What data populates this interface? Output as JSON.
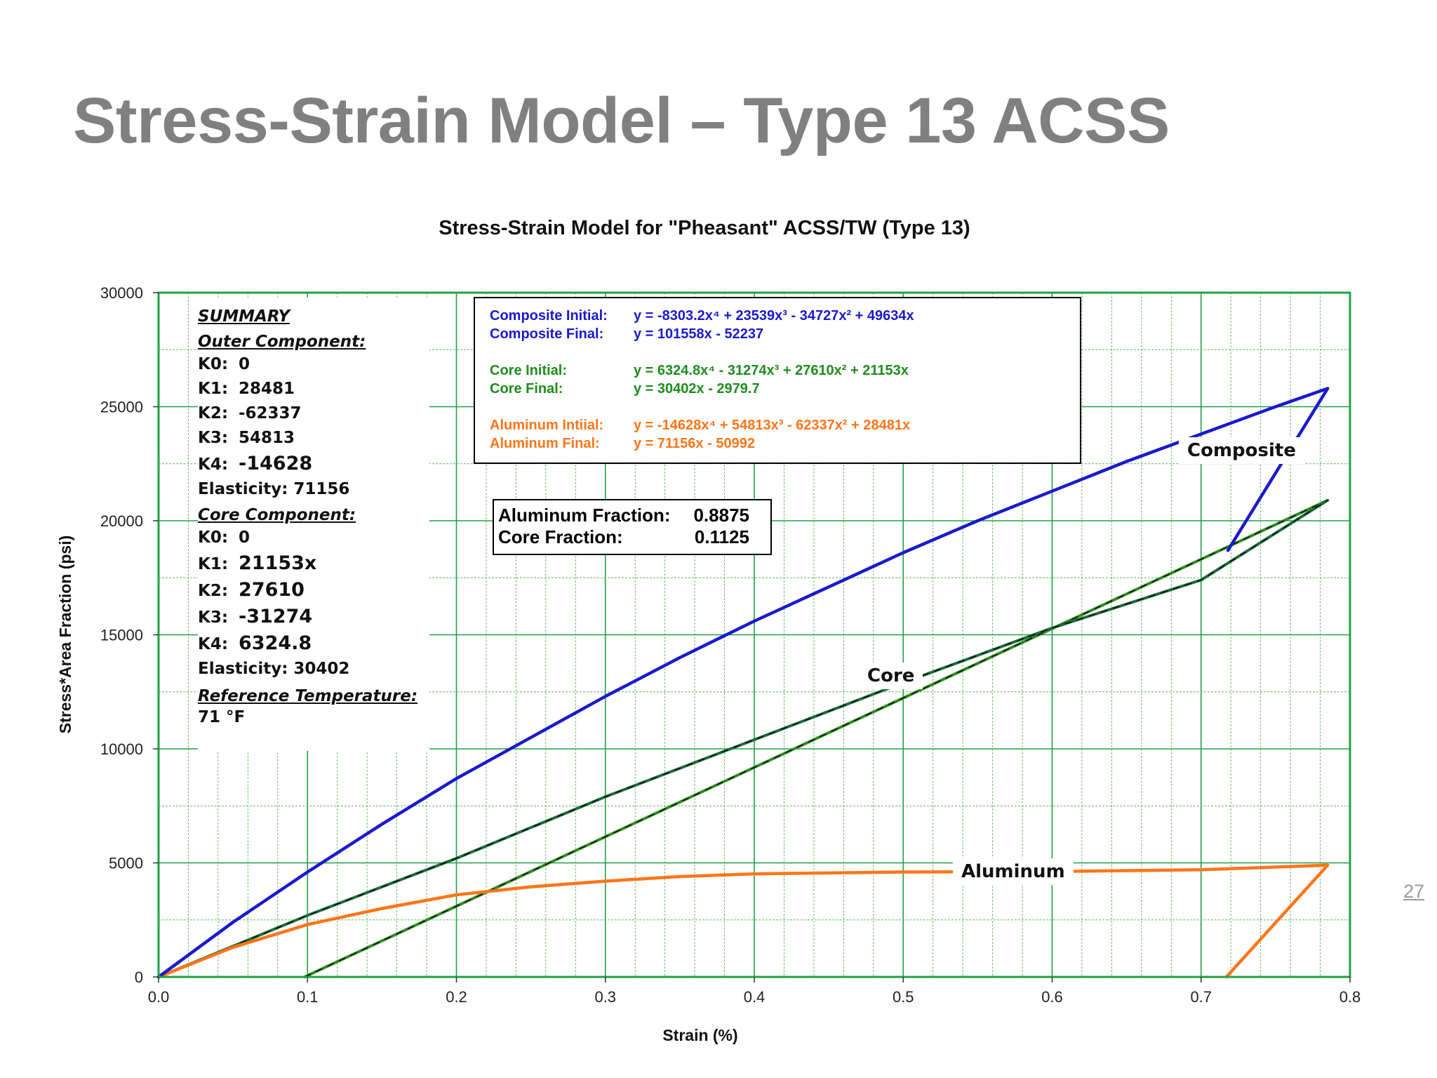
{
  "slide": {
    "title": "Stress-Strain Model – Type 13 ACSS",
    "page_number": "27"
  },
  "chart_data": {
    "type": "line",
    "title": "Stress-Strain Model for \"Pheasant\" ACSS/TW (Type 13)",
    "xlabel": "Strain (%)",
    "ylabel": "Stress*Area Fraction (psi)",
    "xlim": [
      0,
      0.8
    ],
    "ylim": [
      0,
      30000
    ],
    "x_ticks": [
      "0.0",
      "0.1",
      "0.2",
      "0.3",
      "0.4",
      "0.5",
      "0.6",
      "0.7",
      "0.8"
    ],
    "y_ticks": [
      "0",
      "5000",
      "10000",
      "15000",
      "20000",
      "25000",
      "30000"
    ],
    "grid": true,
    "colors": {
      "composite": "#1a1acc",
      "core": "#1e6b3c",
      "core_final": "#2e8b1e",
      "aluminum": "#ff7518",
      "grid_major": "#22a047",
      "grid_minor": "#5cb85c"
    },
    "series": [
      {
        "name": "Composite",
        "x": [
          0,
          0.05,
          0.1,
          0.15,
          0.2,
          0.25,
          0.3,
          0.35,
          0.4,
          0.45,
          0.5,
          0.55,
          0.6,
          0.65,
          0.7,
          0.75,
          0.785,
          0.718
        ],
        "y": [
          0,
          2400,
          4600,
          6700,
          8700,
          10500,
          12300,
          14000,
          15600,
          17100,
          18600,
          20000,
          21300,
          22600,
          23800,
          25000,
          25800,
          18700
        ]
      },
      {
        "name": "Core",
        "x": [
          0,
          0.1,
          0.2,
          0.3,
          0.4,
          0.5,
          0.6,
          0.7,
          0.785
        ],
        "y": [
          0,
          2700,
          5200,
          7900,
          10400,
          12900,
          15300,
          17400,
          20900
        ]
      },
      {
        "name": "Core Final",
        "x": [
          0.098,
          0.785
        ],
        "y": [
          0,
          20900
        ]
      },
      {
        "name": "Aluminum",
        "x": [
          0,
          0.05,
          0.1,
          0.15,
          0.2,
          0.25,
          0.3,
          0.35,
          0.4,
          0.5,
          0.6,
          0.7,
          0.785,
          0.717
        ],
        "y": [
          0,
          1300,
          2300,
          3000,
          3600,
          3950,
          4200,
          4400,
          4520,
          4600,
          4620,
          4700,
          4900,
          0
        ]
      }
    ],
    "summary": {
      "title": "SUMMARY",
      "outer_header": "Outer Component:",
      "outer": [
        {
          "k": "K0:",
          "v": "0"
        },
        {
          "k": "K1:",
          "v": "28481"
        },
        {
          "k": "K2:",
          "v": "-62337"
        },
        {
          "k": "K3:",
          "v": "54813"
        },
        {
          "k": "K4:",
          "v": "-14628"
        }
      ],
      "outer_elasticity": "Elasticity:  71156",
      "core_header": "Core Component:",
      "core": [
        {
          "k": "K0:",
          "v": "0"
        },
        {
          "k": "K1:",
          "v": "21153x"
        },
        {
          "k": "K2:",
          "v": "27610"
        },
        {
          "k": "K3:",
          "v": "-31274"
        },
        {
          "k": "K4:",
          "v": "6324.8"
        }
      ],
      "core_elasticity": "Elasticity:  30402",
      "ref_header": "Reference Temperature:",
      "ref_value": "71 °F"
    },
    "equations": {
      "composite_initial_label": "Composite Initial:",
      "composite_initial": "y = -8303.2x⁴ + 23539x³ - 34727x² + 49634x",
      "composite_final_label": "Composite Final:",
      "composite_final": "y = 101558x - 52237",
      "core_initial_label": "Core Initial:",
      "core_initial": "y = 6324.8x⁴ - 31274x³ + 27610x² + 21153x",
      "core_final_label": "Core Final:",
      "core_final": "y = 30402x - 2979.7",
      "aluminum_initial_label": "Aluminum Intiial:",
      "aluminum_initial": "y = -14628x⁴ + 54813x³ - 62337x² + 28481x",
      "aluminum_final_label": "Aluminum Final:",
      "aluminum_final": "y = 71156x - 50992"
    },
    "fractions": {
      "aluminum_label": "Aluminum Fraction:",
      "aluminum_value": "0.8875",
      "core_label": "Core Fraction:",
      "core_value": "0.1125"
    },
    "curve_labels": {
      "composite": "Composite",
      "core": "Core",
      "aluminum": "Aluminum"
    }
  }
}
